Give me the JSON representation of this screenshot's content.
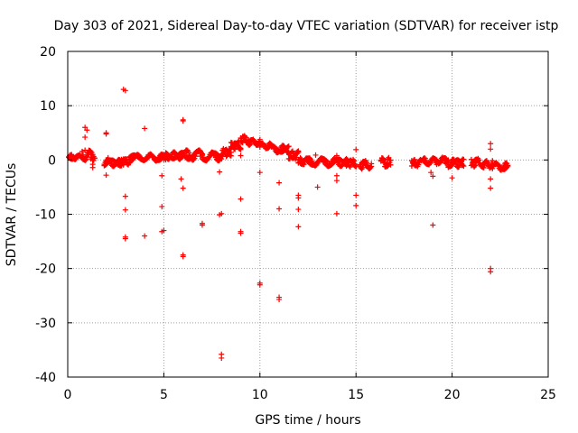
{
  "chart_data": {
    "type": "scatter",
    "title": "Day 303 of 2021, Sidereal Day-to-day VTEC variation (SDTVAR) for receiver istp",
    "xlabel": "GPS time / hours",
    "ylabel": "SDTVAR / TECUs",
    "xlim": [
      0,
      25
    ],
    "ylim": [
      -40,
      20
    ],
    "xticks": [
      0,
      5,
      10,
      15,
      20,
      25
    ],
    "yticks": [
      -40,
      -30,
      -20,
      -10,
      0,
      10,
      20
    ],
    "grid": true,
    "marker": "+",
    "color": "#ff0000",
    "series": [
      {
        "name": "SDTVAR",
        "points": [
          [
            0.2,
            0.4
          ],
          [
            0.2,
            1.0
          ],
          [
            0.3,
            0.6
          ],
          [
            0.8,
            0.6
          ],
          [
            0.9,
            1.8
          ],
          [
            0.9,
            4.2
          ],
          [
            0.9,
            6.0
          ],
          [
            1.0,
            5.5
          ],
          [
            1.1,
            1.0
          ],
          [
            1.2,
            0.2
          ],
          [
            1.3,
            -0.8
          ],
          [
            1.3,
            -1.4
          ],
          [
            2.0,
            -0.2
          ],
          [
            2.0,
            -2.8
          ],
          [
            2.0,
            4.8
          ],
          [
            2.0,
            5.0
          ],
          [
            2.1,
            0.4
          ],
          [
            2.4,
            -0.9
          ],
          [
            2.6,
            -0.6
          ],
          [
            2.8,
            -0.2
          ],
          [
            2.9,
            13.0
          ],
          [
            3.0,
            12.8
          ],
          [
            3.0,
            -6.7
          ],
          [
            3.0,
            -9.2
          ],
          [
            3.0,
            -14.2
          ],
          [
            3.0,
            -14.5
          ],
          [
            3.2,
            0.0
          ],
          [
            3.5,
            0.6
          ],
          [
            3.8,
            0.2
          ],
          [
            4.0,
            -14.0
          ],
          [
            4.0,
            5.8
          ],
          [
            4.1,
            0.2
          ],
          [
            4.4,
            0.7
          ],
          [
            4.7,
            0.4
          ],
          [
            4.9,
            -2.9
          ],
          [
            4.9,
            -8.6
          ],
          [
            4.9,
            -13.2
          ],
          [
            5.0,
            -13.0
          ],
          [
            5.0,
            0.1
          ],
          [
            5.3,
            0.7
          ],
          [
            5.6,
            0.9
          ],
          [
            5.9,
            -3.5
          ],
          [
            6.0,
            7.4
          ],
          [
            6.0,
            7.2
          ],
          [
            6.0,
            -5.2
          ],
          [
            6.0,
            -17.8
          ],
          [
            6.0,
            -17.5
          ],
          [
            6.2,
            0.7
          ],
          [
            6.6,
            1.2
          ],
          [
            6.9,
            0.7
          ],
          [
            7.0,
            -11.7
          ],
          [
            7.0,
            -12.0
          ],
          [
            7.3,
            0.2
          ],
          [
            7.6,
            0.9
          ],
          [
            7.9,
            -2.2
          ],
          [
            7.9,
            -10.1
          ],
          [
            8.0,
            -9.9
          ],
          [
            8.0,
            -35.8
          ],
          [
            8.0,
            -36.5
          ],
          [
            8.2,
            1.2
          ],
          [
            8.5,
            2.5
          ],
          [
            8.9,
            3.5
          ],
          [
            9.0,
            0.8
          ],
          [
            9.0,
            -7.2
          ],
          [
            9.0,
            -13.5
          ],
          [
            9.0,
            -13.2
          ],
          [
            9.2,
            4.3
          ],
          [
            9.5,
            3.6
          ],
          [
            9.8,
            3.2
          ],
          [
            10.0,
            -2.3
          ],
          [
            10.0,
            -22.7
          ],
          [
            10.0,
            -23.0
          ],
          [
            10.3,
            2.6
          ],
          [
            10.6,
            2.4
          ],
          [
            11.0,
            -4.2
          ],
          [
            11.0,
            -9.0
          ],
          [
            11.0,
            -25.3
          ],
          [
            11.0,
            -25.7
          ],
          [
            11.2,
            2.0
          ],
          [
            11.4,
            1.4
          ],
          [
            11.6,
            0.8
          ],
          [
            12.0,
            -7.0
          ],
          [
            12.0,
            -9.1
          ],
          [
            12.0,
            -12.3
          ],
          [
            12.0,
            -6.5
          ],
          [
            12.3,
            -0.2
          ],
          [
            12.6,
            -0.7
          ],
          [
            12.9,
            0.9
          ],
          [
            13.0,
            -5.0
          ],
          [
            13.3,
            -0.4
          ],
          [
            13.6,
            -0.6
          ],
          [
            14.0,
            0.8
          ],
          [
            14.0,
            -2.9
          ],
          [
            14.0,
            -3.8
          ],
          [
            14.0,
            -9.9
          ],
          [
            14.3,
            -0.8
          ],
          [
            14.6,
            -0.5
          ],
          [
            15.0,
            1.9
          ],
          [
            15.0,
            -6.5
          ],
          [
            15.0,
            -8.4
          ],
          [
            15.2,
            -0.9
          ],
          [
            15.5,
            -1.0
          ],
          [
            16.4,
            -0.2
          ],
          [
            16.6,
            -0.8
          ],
          [
            18.2,
            -0.5
          ],
          [
            18.6,
            -0.1
          ],
          [
            18.9,
            -2.3
          ],
          [
            19.0,
            -3.0
          ],
          [
            19.0,
            -12.0
          ],
          [
            19.2,
            -0.1
          ],
          [
            19.6,
            0.0
          ],
          [
            20.0,
            -3.3
          ],
          [
            20.3,
            -0.6
          ],
          [
            20.5,
            -1.0
          ],
          [
            21.2,
            -0.2
          ],
          [
            21.6,
            -0.8
          ],
          [
            22.0,
            3.0
          ],
          [
            22.0,
            2.0
          ],
          [
            22.0,
            -3.5
          ],
          [
            22.0,
            -5.2
          ],
          [
            22.0,
            -20.0
          ],
          [
            22.0,
            -20.6
          ],
          [
            22.4,
            -1.0
          ],
          [
            22.8,
            -1.2
          ]
        ],
        "bands": [
          [
            0.05,
            0.75,
            0.0,
            1.0
          ],
          [
            0.75,
            1.4,
            -0.3,
            2.0
          ],
          [
            1.9,
            2.8,
            -1.3,
            0.2
          ],
          [
            2.8,
            3.2,
            -1.0,
            0.4
          ],
          [
            3.2,
            4.2,
            -0.2,
            1.1
          ],
          [
            4.2,
            5.1,
            -0.3,
            1.2
          ],
          [
            5.1,
            6.0,
            0.0,
            1.6
          ],
          [
            6.0,
            7.0,
            -0.2,
            2.0
          ],
          [
            7.0,
            8.0,
            -0.3,
            1.6
          ],
          [
            8.0,
            8.5,
            0.5,
            2.2
          ],
          [
            8.5,
            9.0,
            1.8,
            3.4
          ],
          [
            9.0,
            9.4,
            3.0,
            4.6
          ],
          [
            9.4,
            10.0,
            2.6,
            3.9
          ],
          [
            10.0,
            10.6,
            2.0,
            3.2
          ],
          [
            10.6,
            11.5,
            1.2,
            2.8
          ],
          [
            11.5,
            12.0,
            0.0,
            1.8
          ],
          [
            12.0,
            12.5,
            -1.0,
            0.5
          ],
          [
            12.5,
            13.5,
            -1.2,
            0.5
          ],
          [
            13.5,
            14.5,
            -1.3,
            0.4
          ],
          [
            14.5,
            15.0,
            -1.4,
            0.2
          ],
          [
            15.2,
            15.8,
            -1.8,
            0.0
          ],
          [
            16.3,
            16.8,
            -1.5,
            0.6
          ],
          [
            17.9,
            18.4,
            -1.3,
            0.2
          ],
          [
            18.5,
            19.2,
            -1.0,
            0.5
          ],
          [
            19.2,
            19.8,
            -0.8,
            0.6
          ],
          [
            19.8,
            20.6,
            -1.5,
            0.3
          ],
          [
            21.0,
            21.6,
            -1.4,
            0.4
          ],
          [
            21.6,
            22.1,
            -1.6,
            0.0
          ],
          [
            22.1,
            22.9,
            -2.0,
            -0.4
          ]
        ]
      }
    ]
  }
}
